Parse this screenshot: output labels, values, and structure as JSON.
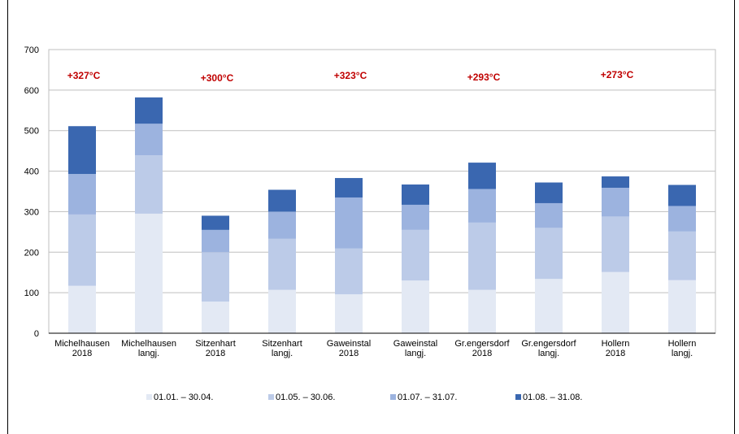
{
  "chart_data": {
    "type": "bar",
    "stacked": true,
    "categories": [
      [
        "Michelhausen",
        "2018"
      ],
      [
        "Michelhausen",
        "langj."
      ],
      [
        "Sitzenhart",
        "2018"
      ],
      [
        "Sitzenhart",
        "langj."
      ],
      [
        "Gaweinstal",
        "2018"
      ],
      [
        "Gaweinstal",
        "langj."
      ],
      [
        "Gr.engersdorf",
        "2018"
      ],
      [
        "Gr.engersdorf",
        "langj."
      ],
      [
        "Hollern",
        "2018"
      ],
      [
        "Hollern",
        "langj."
      ]
    ],
    "series": [
      {
        "name": "01.01. – 30.04.",
        "color": "#e3e9f4",
        "values": [
          117,
          295,
          78,
          107,
          96,
          130,
          107,
          134,
          151,
          131
        ]
      },
      {
        "name": "01.05. – 30.06.",
        "color": "#bccbe8",
        "values": [
          176,
          144,
          122,
          126,
          113,
          125,
          166,
          126,
          137,
          120
        ]
      },
      {
        "name": "01.07. – 31.07.",
        "color": "#9cb3df",
        "values": [
          100,
          78,
          55,
          67,
          126,
          62,
          83,
          61,
          71,
          63
        ]
      },
      {
        "name": "01.08. – 31.08.",
        "color": "#3a67b0",
        "values": [
          118,
          65,
          35,
          54,
          48,
          50,
          65,
          51,
          28,
          52
        ]
      }
    ],
    "annotations": [
      {
        "text": "+327°C",
        "after_category": 0
      },
      {
        "text": "+300°C",
        "after_category": 2
      },
      {
        "text": "+323°C",
        "after_category": 4
      },
      {
        "text": "+293°C",
        "after_category": 6
      },
      {
        "text": "+273°C",
        "after_category": 8
      }
    ],
    "yticks": [
      0,
      100,
      200,
      300,
      400,
      500,
      600,
      700
    ],
    "ylim": [
      0,
      700
    ],
    "grid": true,
    "legend_position": "bottom"
  }
}
